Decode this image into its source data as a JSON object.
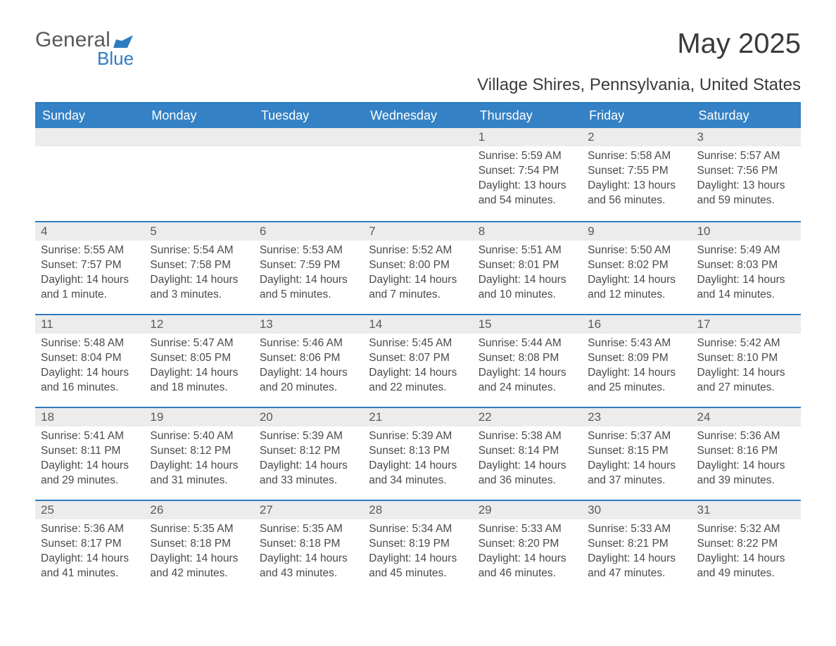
{
  "logo": {
    "general": "General",
    "blue": "Blue",
    "flag_color": "#2d7cc1"
  },
  "title": "May 2025",
  "location": "Village Shires, Pennsylvania, United States",
  "colors": {
    "header_bg": "#3481c5",
    "header_text": "#ffffff",
    "accent": "#2d7cc1",
    "day_header_bg": "#ececec",
    "text": "#4a4a4a",
    "background": "#ffffff"
  },
  "typography": {
    "title_fontsize": 40,
    "location_fontsize": 24,
    "weekday_fontsize": 18,
    "daynum_fontsize": 17,
    "body_fontsize": 15.5
  },
  "weekdays": [
    "Sunday",
    "Monday",
    "Tuesday",
    "Wednesday",
    "Thursday",
    "Friday",
    "Saturday"
  ],
  "weeks": [
    [
      null,
      null,
      null,
      null,
      {
        "n": "1",
        "sunrise": "5:59 AM",
        "sunset": "7:54 PM",
        "daylight": "13 hours and 54 minutes."
      },
      {
        "n": "2",
        "sunrise": "5:58 AM",
        "sunset": "7:55 PM",
        "daylight": "13 hours and 56 minutes."
      },
      {
        "n": "3",
        "sunrise": "5:57 AM",
        "sunset": "7:56 PM",
        "daylight": "13 hours and 59 minutes."
      }
    ],
    [
      {
        "n": "4",
        "sunrise": "5:55 AM",
        "sunset": "7:57 PM",
        "daylight": "14 hours and 1 minute."
      },
      {
        "n": "5",
        "sunrise": "5:54 AM",
        "sunset": "7:58 PM",
        "daylight": "14 hours and 3 minutes."
      },
      {
        "n": "6",
        "sunrise": "5:53 AM",
        "sunset": "7:59 PM",
        "daylight": "14 hours and 5 minutes."
      },
      {
        "n": "7",
        "sunrise": "5:52 AM",
        "sunset": "8:00 PM",
        "daylight": "14 hours and 7 minutes."
      },
      {
        "n": "8",
        "sunrise": "5:51 AM",
        "sunset": "8:01 PM",
        "daylight": "14 hours and 10 minutes."
      },
      {
        "n": "9",
        "sunrise": "5:50 AM",
        "sunset": "8:02 PM",
        "daylight": "14 hours and 12 minutes."
      },
      {
        "n": "10",
        "sunrise": "5:49 AM",
        "sunset": "8:03 PM",
        "daylight": "14 hours and 14 minutes."
      }
    ],
    [
      {
        "n": "11",
        "sunrise": "5:48 AM",
        "sunset": "8:04 PM",
        "daylight": "14 hours and 16 minutes."
      },
      {
        "n": "12",
        "sunrise": "5:47 AM",
        "sunset": "8:05 PM",
        "daylight": "14 hours and 18 minutes."
      },
      {
        "n": "13",
        "sunrise": "5:46 AM",
        "sunset": "8:06 PM",
        "daylight": "14 hours and 20 minutes."
      },
      {
        "n": "14",
        "sunrise": "5:45 AM",
        "sunset": "8:07 PM",
        "daylight": "14 hours and 22 minutes."
      },
      {
        "n": "15",
        "sunrise": "5:44 AM",
        "sunset": "8:08 PM",
        "daylight": "14 hours and 24 minutes."
      },
      {
        "n": "16",
        "sunrise": "5:43 AM",
        "sunset": "8:09 PM",
        "daylight": "14 hours and 25 minutes."
      },
      {
        "n": "17",
        "sunrise": "5:42 AM",
        "sunset": "8:10 PM",
        "daylight": "14 hours and 27 minutes."
      }
    ],
    [
      {
        "n": "18",
        "sunrise": "5:41 AM",
        "sunset": "8:11 PM",
        "daylight": "14 hours and 29 minutes."
      },
      {
        "n": "19",
        "sunrise": "5:40 AM",
        "sunset": "8:12 PM",
        "daylight": "14 hours and 31 minutes."
      },
      {
        "n": "20",
        "sunrise": "5:39 AM",
        "sunset": "8:12 PM",
        "daylight": "14 hours and 33 minutes."
      },
      {
        "n": "21",
        "sunrise": "5:39 AM",
        "sunset": "8:13 PM",
        "daylight": "14 hours and 34 minutes."
      },
      {
        "n": "22",
        "sunrise": "5:38 AM",
        "sunset": "8:14 PM",
        "daylight": "14 hours and 36 minutes."
      },
      {
        "n": "23",
        "sunrise": "5:37 AM",
        "sunset": "8:15 PM",
        "daylight": "14 hours and 37 minutes."
      },
      {
        "n": "24",
        "sunrise": "5:36 AM",
        "sunset": "8:16 PM",
        "daylight": "14 hours and 39 minutes."
      }
    ],
    [
      {
        "n": "25",
        "sunrise": "5:36 AM",
        "sunset": "8:17 PM",
        "daylight": "14 hours and 41 minutes."
      },
      {
        "n": "26",
        "sunrise": "5:35 AM",
        "sunset": "8:18 PM",
        "daylight": "14 hours and 42 minutes."
      },
      {
        "n": "27",
        "sunrise": "5:35 AM",
        "sunset": "8:18 PM",
        "daylight": "14 hours and 43 minutes."
      },
      {
        "n": "28",
        "sunrise": "5:34 AM",
        "sunset": "8:19 PM",
        "daylight": "14 hours and 45 minutes."
      },
      {
        "n": "29",
        "sunrise": "5:33 AM",
        "sunset": "8:20 PM",
        "daylight": "14 hours and 46 minutes."
      },
      {
        "n": "30",
        "sunrise": "5:33 AM",
        "sunset": "8:21 PM",
        "daylight": "14 hours and 47 minutes."
      },
      {
        "n": "31",
        "sunrise": "5:32 AM",
        "sunset": "8:22 PM",
        "daylight": "14 hours and 49 minutes."
      }
    ]
  ],
  "labels": {
    "sunrise": "Sunrise:",
    "sunset": "Sunset:",
    "daylight": "Daylight:"
  }
}
